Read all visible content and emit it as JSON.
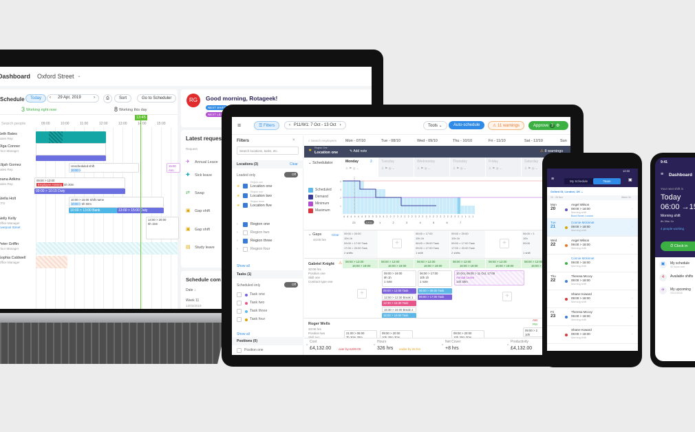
{
  "laptop": {
    "header": {
      "title": "Dashboard",
      "location": "Oxford Street"
    },
    "schedule": {
      "title": "Schedule",
      "today": "Today",
      "date": "29 Apr, 2019",
      "sort": "Sort",
      "go": "Go to Scheduler",
      "working_now_count": "3",
      "working_now_label": "Working right now",
      "working_day_count": "8",
      "working_day_label": "Working this day",
      "search_placeholder": "Search people",
      "times": [
        "09:00",
        "10:00",
        "11:00",
        "12:00",
        "13:00",
        "14:00",
        "15:00"
      ],
      "now": "13:45",
      "people": [
        {
          "name": "Seth Bates",
          "role": "Sales Rep"
        },
        {
          "name": "Olga Conner",
          "role": "Floor Manager"
        },
        {
          "name": "Elijah Gomez",
          "role": "Sales Rep"
        },
        {
          "name": "Ioana Adkins",
          "role": "Sales Rep"
        },
        {
          "name": "Stella Holt",
          "role": "CTO"
        },
        {
          "name": "Nelly Kelly",
          "role": "Office Manager",
          "location": "Liverpool Street"
        },
        {
          "name": "Peter Griffin",
          "role": "Floor Manager"
        },
        {
          "name": "Sophia Caldwell",
          "role": "Office Manager"
        }
      ],
      "shifts": {
        "unscheduled": "Unscheduled shift",
        "unsched_time": "10:00 >",
        "unsched_right": "15:00",
        "unsched_right2": "Ann",
        "ioana_time": "09:00 > 13:00",
        "missing": "Employee missing",
        "ioana_meta": "5h  30m",
        "ioana_duty": "09:00 > 10:15  Duty",
        "stella_time": "10:00 > 15:00  Shift name",
        "stella_sub": "10:00 >",
        "stella_meta": "5h  60m",
        "bank": "10:00 > 13:00  Bank",
        "duty": "13:00 > 15:00  Duty",
        "nelly_time": "14:00 > 20:00",
        "nelly_meta": "6h  15m"
      }
    },
    "greeting": {
      "initials": "RG",
      "text": "Good morning, Rotageek!",
      "badge1": "NEXT SHIFT",
      "badge2": "NEXT LEAVE"
    },
    "requests": {
      "title": "Latest requests",
      "col": "Request",
      "items": [
        "Annual Leave",
        "Sick leave",
        "Swap",
        "Gap shift",
        "Gap shift",
        "Study leave"
      ]
    },
    "schedule_comments": {
      "title": "Schedule com",
      "col": "Date ↓",
      "week": "Week 11",
      "date": "12/03/2019"
    }
  },
  "tablet": {
    "toolbar": {
      "filters": "Filters",
      "period": "P11/W1: 7 Oct - 13 Oct",
      "tools": "Tools",
      "auto": "Auto-schedule",
      "warnings": "11 warnings",
      "approve": "Approve",
      "approve_count": "3"
    },
    "filters": {
      "title": "Filters",
      "search": "Search locations, tasks, etc.",
      "locations": "Locations (3)",
      "clear": "Clear",
      "loaded_only": "Loaded only",
      "off": "Off",
      "locs": [
        {
          "region": "Region one",
          "name": "Location one"
        },
        {
          "region": "Region one",
          "name": "Location two"
        },
        {
          "region": "Region three",
          "name": "Location five"
        }
      ],
      "regions": [
        {
          "name": "Region one",
          "checked": true
        },
        {
          "name": "Region two",
          "checked": false
        },
        {
          "name": "Region three",
          "checked": "partial"
        },
        {
          "name": "Region four",
          "checked": false
        }
      ],
      "show_all": "Show all",
      "tasks": "Tasks (1)",
      "scheduled_only": "Scheduled only",
      "task_items": [
        {
          "name": "Task one",
          "color": "#7b61d9"
        },
        {
          "name": "Task two",
          "color": "#e8558a"
        },
        {
          "name": "Task three",
          "color": "#5db8e8"
        },
        {
          "name": "Task four",
          "color": "#d9a400"
        }
      ],
      "positions": "Positions (0)",
      "position_one": "Position one"
    },
    "grid": {
      "search": "Search employees",
      "days": [
        "Mon - 07/10",
        "Tue - 08/10",
        "Wed - 09/10",
        "Thu - 10/10",
        "Fri - 11/10",
        "Sat - 12/10",
        "Sun"
      ],
      "location_region": "Region One",
      "location": "Location one",
      "add_note": "Add note",
      "loc_warnings": "8 warnings",
      "scheduler": "Schedulator",
      "day_names": [
        "Monday",
        "Tuesday",
        "Wednesday",
        "Thursday",
        "Friday",
        "Saturday"
      ],
      "monday_count": "2",
      "legend": [
        "Scheduled",
        "Demand",
        "Minimum",
        "Maximum"
      ],
      "legend_colors": [
        "#5db8e8",
        "#3a3a9a",
        "#b04dd1",
        "#d9363e"
      ],
      "y_ticks": [
        "4",
        "3",
        "2",
        "1"
      ],
      "counts": [
        4,
        4,
        4,
        4,
        4,
        4,
        3,
        3,
        3,
        3,
        3,
        3,
        2,
        2,
        2,
        2,
        2,
        2,
        2,
        2,
        2,
        2,
        2,
        2,
        2,
        2,
        2,
        2,
        2,
        2,
        2,
        2,
        2,
        1,
        1,
        1,
        1
      ],
      "hours": [
        "23",
        "12/11",
        "1",
        "2",
        "3",
        "4",
        "5",
        "6",
        "7"
      ],
      "gaps": {
        "title": "Gaps",
        "hours": "44:00 hrs",
        "clear": "Clear",
        "cells": [
          {
            "t": "09:00 > 20:00",
            "m": "10h  1h",
            "a": "09:00 > 17:00  Task",
            "b": "17:00 > 20:00  Task",
            "n": "2 shifts"
          },
          null,
          {
            "t": "06:00 > 17:00",
            "m": "10h  1h",
            "a": "06:00 > 09:00  Task",
            "b": "09:00 > 17:00  Task",
            "n": "1 shift"
          },
          {
            "t": "09:00 > 20:00",
            "m": "10h  1h",
            "a": "09:00 > 17:00  Task",
            "b": "17:00 > 20:00  Task",
            "n": "2 shifts"
          },
          null,
          {
            "t": "06:00 > 1",
            "m": "10h",
            "a": "09:00",
            "b": "",
            "n": "1 shift"
          }
        ]
      },
      "gabriel": {
        "name": "Gabriel Knight",
        "hours": "32:00 hrs",
        "pos": "Position one",
        "skill": "Skill one",
        "contract": "Contract type one",
        "avail": "08:00 > 12:00",
        "avail2": "16:00 > 18:00",
        "tue": {
          "t": "09:00 > 19:00",
          "m": "9h  1h",
          "n": "1 note",
          "tasks": [
            {
              "l": "09:00 > 12:00  Task",
              "c": "#7b61d9"
            },
            {
              "l": "12:00 > 12:30  Break 1",
              "c": ""
            },
            {
              "l": "12:30 > 15:30  Task",
              "c": "#e8558a"
            },
            {
              "l": "15:30 > 16:00  Break 2",
              "c": ""
            },
            {
              "l": "16:00 > 19:00  Task",
              "c": "#5db8e8"
            }
          ]
        },
        "wed": {
          "t": "06:00 > 17:00",
          "m": "10h  1h",
          "n": "1 note",
          "tasks": [
            {
              "l": "06:00 > 09:00  Task",
              "c": "#5db8e8"
            },
            {
              "l": "09:00 > 17:00  Task",
              "c": "#7b61d9"
            }
          ]
        },
        "leave": {
          "t": "10 Oct, 09:00 > 11 Oct, 17:00",
          "type": "Annual Leave",
          "dur": "14h 30m"
        }
      },
      "roger": {
        "name": "Roger Wells",
        "hours": "33:00 hrs",
        "pos": "Position two",
        "skill": "Skill two",
        "am": "AM",
        "pm": "PM",
        "shifts": [
          {
            "t": "21:00 > 05:00",
            "m": "7h 30m  30m"
          },
          {
            "t": "09:00 > 20:00",
            "m": "10h 30m  30m"
          },
          {
            "t": "09:00 > 20:00",
            "m": "10h 30m  30m"
          },
          {
            "t": "09:00 > 2",
            "m": "10h"
          }
        ]
      },
      "summary": [
        {
          "label": "Cost",
          "value": "£4,132.00",
          "note": "over by £200.00",
          "note_color": "#d9363e"
        },
        {
          "label": "Hours",
          "value": "326 hrs",
          "note": "under by 26 hrs",
          "note_color": "#e8a317"
        },
        {
          "label": "Net Cover",
          "value": "+8 hrs",
          "note": "",
          "note_color": ""
        },
        {
          "label": "Productivity",
          "value": "£4,132.00",
          "note": "",
          "note_color": ""
        }
      ]
    }
  },
  "android": {
    "time": "12:30",
    "tab1": "My Schedule",
    "tab2": "Team",
    "location": "Oxford St, London, UK",
    "range": "20 - 26 Nov",
    "week": "Week 34",
    "entries": [
      {
        "dow": "Mon",
        "day": "20",
        "name": "Angel Wilson",
        "time": "09:00 > 18:00",
        "shift": "Morning shift",
        "extra": "Bond Street, London",
        "color": "#5b4fc9",
        "hl": false
      },
      {
        "dow": "Tue",
        "day": "21",
        "name": "Connie Mckinnet",
        "time": "09:00 > 18:00",
        "shift": "Morning shift",
        "color": "#d9a400",
        "hl": true
      },
      {
        "dow": "Wed",
        "day": "22",
        "name": "Angel Wilson",
        "time": "09:00 > 18:00",
        "shift": "Morning shift",
        "color": "#e8772e",
        "hl": false
      },
      {
        "dow": "",
        "day": "",
        "name": "Connie Mckinnet",
        "time": "09:00 > 18:00",
        "shift": "Morning shift",
        "color": "#3cb043",
        "hl": false
      },
      {
        "dow": "Thu",
        "day": "22",
        "name": "Theresa Mccoy",
        "time": "09:00 > 18:00",
        "shift": "Morning shift",
        "color": "#3a7bd5",
        "hl": false
      },
      {
        "dow": "",
        "day": "",
        "name": "Shane Howard",
        "time": "09:00 > 18:00",
        "shift": "Morning shift",
        "color": "#d9363e",
        "hl": false
      },
      {
        "dow": "Fri",
        "day": "23",
        "name": "Theresa Mccoy",
        "time": "09:00 > 18:00",
        "shift": "Morning shift",
        "color": "#3a7bd5",
        "hl": false
      },
      {
        "dow": "",
        "day": "",
        "name": "Shane Howard",
        "time": "09:00 > 18:00",
        "shift": "Morning shift",
        "color": "#d9363e",
        "hl": false
      }
    ]
  },
  "iphone": {
    "time": "9:41",
    "title": "Dashboard",
    "next_label": "Your next shift is",
    "day": "Today",
    "range": "06:00 →15",
    "shift": "Morning shift",
    "meta": "8h 30m  1h",
    "working": "4 people working",
    "clock_in": "Clock in",
    "items": [
      {
        "label": "My schedule",
        "sub": "32 hours over"
      },
      {
        "label": "Available shifts",
        "sub": "",
        "badge": "4"
      },
      {
        "label": "My upcoming",
        "sub": "20/12/2018"
      }
    ]
  },
  "colors": {
    "brand": "#2a2156",
    "primary": "#2f8be6",
    "green": "#3cb043",
    "teal": "#16a9a9",
    "purple": "#6b6fe0"
  }
}
